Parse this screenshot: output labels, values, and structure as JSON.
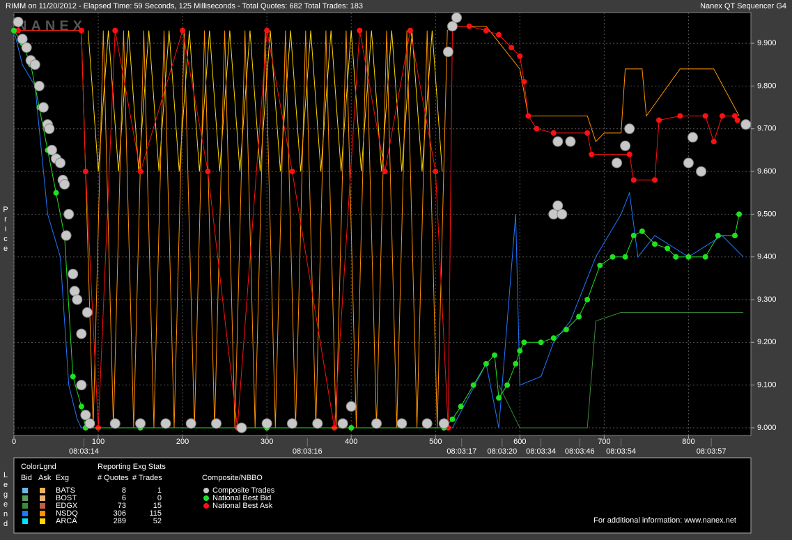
{
  "header": {
    "title": "RIMM on 11/20/2012  -  Elapsed Time: 59 Seconds, 125 Milliseconds  -  Total Quotes: 682  Total Trades: 183",
    "product": "Nanex QT Sequencer G4"
  },
  "watermark": "NANEX",
  "legend_panel": {
    "side_label": "Legend",
    "title": "ColorLgnd",
    "headers": [
      "Bid",
      "Ask",
      "Exg"
    ],
    "stats_title": "Reporting Exg Stats",
    "stats_headers": [
      "# Quotes",
      "# Trades"
    ],
    "exchanges": [
      {
        "name": "BATS",
        "bid_color": "#6ab7e8",
        "ask_color": "#f0b060",
        "quotes": 8,
        "trades": 1
      },
      {
        "name": "BOST",
        "bid_color": "#5a9a5a",
        "ask_color": "#e8b070",
        "quotes": 6,
        "trades": 0
      },
      {
        "name": "EDGX",
        "bid_color": "#3a8a3a",
        "ask_color": "#c06040",
        "quotes": 73,
        "trades": 15
      },
      {
        "name": "NSDQ",
        "bid_color": "#1e78ff",
        "ask_color": "#ff9000",
        "quotes": 306,
        "trades": 115
      },
      {
        "name": "ARCA",
        "bid_color": "#00e0ff",
        "ask_color": "#ffd700",
        "quotes": 289,
        "trades": 52
      }
    ],
    "nbbo_title": "Composite/NBBO"
  },
  "footer": "For additional information: www.nanex.net",
  "chart_data": {
    "type": "line",
    "y_label": "Price",
    "grid": true,
    "xlim": [
      0,
      874
    ],
    "xticks": [
      0,
      100,
      200,
      300,
      400,
      500,
      600,
      700,
      800
    ],
    "time_ticks": [
      {
        "value": 83,
        "label": "08:03:14"
      },
      {
        "value": 348,
        "label": "08:03:16"
      },
      {
        "value": 531,
        "label": "08:03:17"
      },
      {
        "value": 579,
        "label": "08:03:20"
      },
      {
        "value": 625,
        "label": "08:03:34"
      },
      {
        "value": 671,
        "label": "08:03:46"
      },
      {
        "value": 720,
        "label": "08:03:54"
      },
      {
        "value": 827,
        "label": "08:03:57"
      }
    ],
    "ylim": [
      8.982,
      9.972
    ],
    "yticks": [
      {
        "value": 9.0,
        "label": "9.000"
      },
      {
        "value": 9.1,
        "label": "9.100"
      },
      {
        "value": 9.2,
        "label": "9.200"
      },
      {
        "value": 9.3,
        "label": "9.300"
      },
      {
        "value": 9.4,
        "label": "9.400"
      },
      {
        "value": 9.5,
        "label": "9.500"
      },
      {
        "value": 9.6,
        "label": "9.600"
      },
      {
        "value": 9.7,
        "label": "9.700"
      },
      {
        "value": 9.8,
        "label": "9.800"
      },
      {
        "value": 9.9,
        "label": "9.900"
      }
    ],
    "series": [
      {
        "name": "ARCA",
        "side": "Ask",
        "style": "line",
        "color": "#ffd700",
        "x": [
          88,
          100,
          112,
          124,
          136,
          148,
          160,
          172,
          184,
          196,
          208,
          220,
          232,
          244,
          256,
          268,
          280,
          292,
          304,
          316,
          328,
          340,
          352,
          364,
          376,
          388,
          400,
          412,
          424,
          436,
          448,
          460,
          472,
          484,
          496,
          508
        ],
        "values": [
          9.93,
          9.6,
          9.93,
          9.6,
          9.93,
          9.6,
          9.93,
          9.6,
          9.93,
          9.6,
          9.93,
          9.6,
          9.93,
          9.6,
          9.93,
          9.6,
          9.93,
          9.6,
          9.93,
          9.6,
          9.93,
          9.6,
          9.93,
          9.6,
          9.93,
          9.6,
          9.93,
          9.6,
          9.93,
          9.6,
          9.93,
          9.6,
          9.93,
          9.6,
          9.93,
          9.6
        ]
      },
      {
        "name": "NSDQ",
        "side": "Ask",
        "style": "line",
        "color": "#ff9000",
        "x": [
          5,
          80,
          94,
          106,
          118,
          130,
          142,
          154,
          166,
          178,
          190,
          202,
          214,
          226,
          238,
          250,
          262,
          274,
          286,
          298,
          310,
          322,
          334,
          346,
          358,
          370,
          382,
          394,
          406,
          418,
          430,
          442,
          454,
          466,
          478,
          490,
          502,
          514,
          520,
          560,
          600,
          610,
          680,
          690,
          700,
          720,
          725,
          745,
          750,
          790,
          830,
          860
        ],
        "values": [
          9.93,
          9.93,
          9.0,
          9.93,
          9.0,
          9.93,
          9.0,
          9.93,
          9.0,
          9.93,
          9.0,
          9.93,
          9.0,
          9.93,
          9.0,
          9.93,
          9.0,
          9.93,
          9.0,
          9.93,
          9.0,
          9.93,
          9.0,
          9.93,
          9.0,
          9.93,
          9.0,
          9.93,
          9.0,
          9.93,
          9.0,
          9.93,
          9.0,
          9.93,
          9.0,
          9.93,
          9.0,
          9.93,
          9.94,
          9.94,
          9.84,
          9.73,
          9.73,
          9.67,
          9.69,
          9.69,
          9.84,
          9.84,
          9.73,
          9.84,
          9.84,
          9.73
        ]
      },
      {
        "name": "NSDQ",
        "side": "Bid",
        "style": "line",
        "color": "#1e78ff",
        "x": [
          0,
          10,
          25,
          30,
          35,
          40,
          55,
          65,
          75,
          80,
          510,
          520,
          560,
          575,
          595,
          600,
          625,
          640,
          660,
          690,
          720,
          730,
          740,
          760,
          800,
          840,
          865
        ],
        "values": [
          9.93,
          9.85,
          9.8,
          9.7,
          9.6,
          9.5,
          9.4,
          9.1,
          9.02,
          9.0,
          9.0,
          9.0,
          9.15,
          9.0,
          9.5,
          9.1,
          9.12,
          9.2,
          9.25,
          9.4,
          9.5,
          9.55,
          9.4,
          9.45,
          9.4,
          9.45,
          9.4
        ]
      },
      {
        "name": "EDGX",
        "side": "Bid",
        "style": "line",
        "color": "#3a8a3a",
        "x": [
          575,
          600,
          680,
          690,
          720,
          760,
          800,
          865
        ],
        "values": [
          9.1,
          9.0,
          9.0,
          9.25,
          9.27,
          9.27,
          9.27,
          9.27
        ]
      },
      {
        "name": "National Best Ask",
        "style": "line+markers",
        "color": "#ff1010",
        "x": [
          5,
          80,
          85,
          100,
          120,
          150,
          200,
          230,
          265,
          300,
          330,
          380,
          410,
          440,
          470,
          500,
          515,
          520,
          540,
          560,
          575,
          590,
          600,
          605,
          610,
          620,
          640,
          680,
          685,
          730,
          735,
          760,
          765,
          790,
          820,
          830,
          840,
          855,
          858
        ],
        "values": [
          9.93,
          9.93,
          9.6,
          9.0,
          9.93,
          9.6,
          9.93,
          9.6,
          9.0,
          9.93,
          9.6,
          9.0,
          9.93,
          9.6,
          9.93,
          9.6,
          9.0,
          9.94,
          9.94,
          9.93,
          9.92,
          9.89,
          9.87,
          9.81,
          9.73,
          9.7,
          9.69,
          9.69,
          9.64,
          9.64,
          9.58,
          9.58,
          9.72,
          9.73,
          9.73,
          9.67,
          9.73,
          9.73,
          9.72
        ]
      },
      {
        "name": "National Best Bid",
        "style": "line+markers",
        "color": "#20e020",
        "x": [
          0,
          10,
          20,
          30,
          40,
          50,
          60,
          70,
          80,
          85,
          150,
          300,
          400,
          510,
          520,
          530,
          545,
          560,
          570,
          575,
          585,
          595,
          600,
          605,
          625,
          640,
          655,
          670,
          680,
          695,
          710,
          725,
          735,
          745,
          760,
          775,
          785,
          800,
          820,
          835,
          855,
          860
        ],
        "values": [
          9.93,
          9.9,
          9.85,
          9.75,
          9.65,
          9.55,
          9.45,
          9.12,
          9.05,
          9.0,
          9.0,
          9.0,
          9.0,
          9.0,
          9.02,
          9.05,
          9.1,
          9.15,
          9.17,
          9.07,
          9.1,
          9.15,
          9.18,
          9.2,
          9.2,
          9.21,
          9.23,
          9.26,
          9.3,
          9.38,
          9.4,
          9.4,
          9.45,
          9.46,
          9.43,
          9.42,
          9.4,
          9.4,
          9.4,
          9.45,
          9.45,
          9.5
        ]
      },
      {
        "name": "Composite Trades",
        "style": "markers",
        "color": "#c8c8c8",
        "x": [
          5,
          10,
          15,
          20,
          25,
          30,
          35,
          40,
          42,
          45,
          50,
          55,
          58,
          60,
          62,
          65,
          70,
          72,
          75,
          80,
          87,
          80,
          85,
          90,
          120,
          150,
          180,
          210,
          240,
          270,
          300,
          330,
          360,
          390,
          400,
          430,
          460,
          490,
          510,
          515,
          520,
          525,
          640,
          645,
          650,
          645,
          660,
          715,
          725,
          730,
          800,
          805,
          815,
          868
        ],
        "values": [
          9.95,
          9.91,
          9.89,
          9.86,
          9.85,
          9.8,
          9.75,
          9.71,
          9.7,
          9.65,
          9.63,
          9.62,
          9.58,
          9.57,
          9.45,
          9.5,
          9.36,
          9.32,
          9.3,
          9.22,
          9.27,
          9.1,
          9.03,
          9.01,
          9.01,
          9.01,
          9.01,
          9.01,
          9.01,
          9.0,
          9.01,
          9.01,
          9.01,
          9.01,
          9.05,
          9.01,
          9.01,
          9.01,
          9.01,
          9.88,
          9.94,
          9.96,
          9.5,
          9.52,
          9.5,
          9.67,
          9.67,
          9.62,
          9.66,
          9.7,
          9.62,
          9.68,
          9.6,
          9.71
        ]
      }
    ]
  }
}
